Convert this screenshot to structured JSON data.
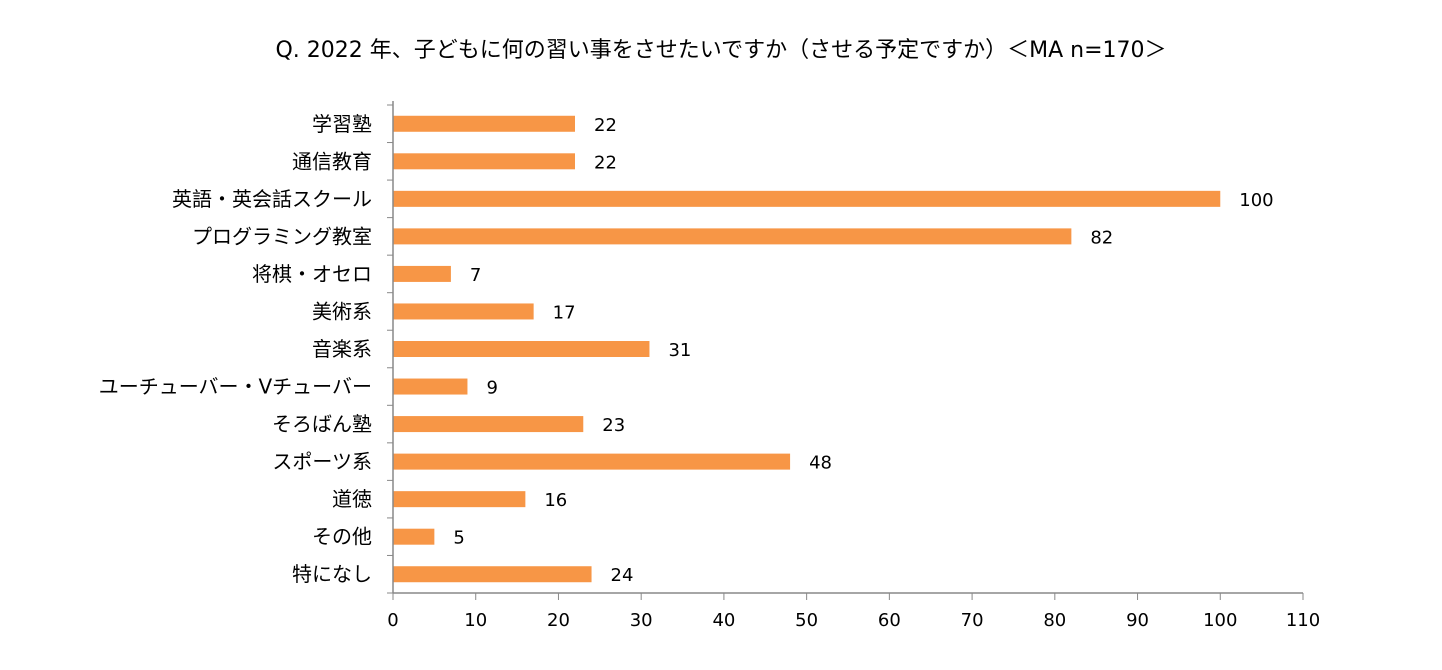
{
  "chart_data": {
    "type": "bar",
    "orientation": "horizontal",
    "title": "Q. 2022 年、子どもに何の習い事をさせたいですか（させる予定ですか）＜MA n=170＞",
    "categories": [
      "学習塾",
      "通信教育",
      "英語・英会話スクール",
      "プログラミング教室",
      "将棋・オセロ",
      "美術系",
      "音楽系",
      "ユーチューバー・Vチューバー",
      "そろばん塾",
      "スポーツ系",
      "道徳",
      "その他",
      "特になし"
    ],
    "values": [
      22,
      22,
      100,
      82,
      7,
      17,
      31,
      9,
      23,
      48,
      16,
      5,
      24
    ],
    "xlim": [
      0,
      110
    ],
    "xticks": [
      0,
      10,
      20,
      30,
      40,
      50,
      60,
      70,
      80,
      90,
      100,
      110
    ],
    "data_labels": true,
    "grid": false,
    "legend": "none",
    "bar_color": "#F79646",
    "axis_color": "#888888"
  }
}
